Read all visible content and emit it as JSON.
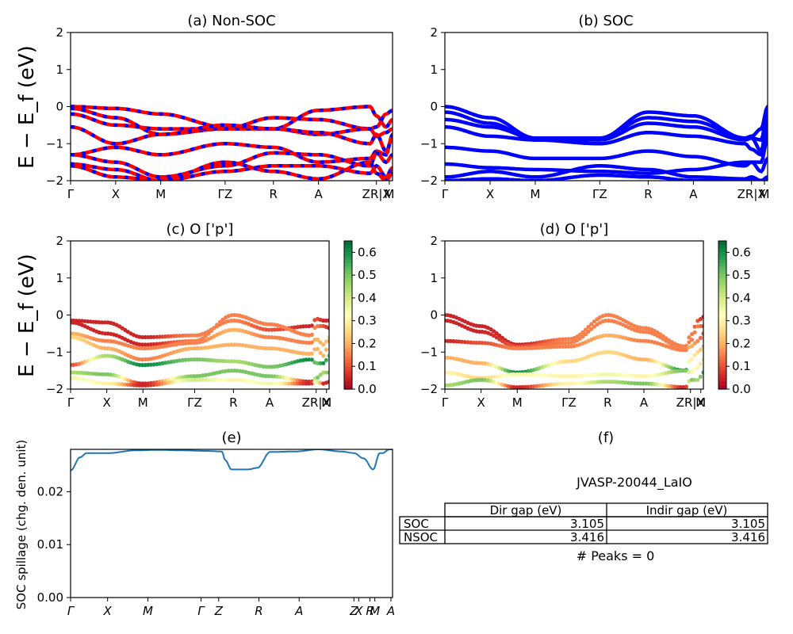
{
  "figure": {
    "ylabel_band": "E − E_f (eV)",
    "ylabel_spill": "SOC spillage (chg. den. unit)"
  },
  "colors": {
    "band_primary": "#ff0000",
    "band_secondary": "#0000ff",
    "spillage_line": "#1f77b4",
    "colormap": [
      "#a50026",
      "#d73027",
      "#f46d43",
      "#fdae61",
      "#fee08b",
      "#ffffbf",
      "#d9ef8b",
      "#a6d96a",
      "#66bd63",
      "#1a9850",
      "#006837"
    ]
  },
  "panels": {
    "a": {
      "title": "(a) Non-SOC"
    },
    "b": {
      "title": "(b) SOC"
    },
    "c": {
      "title": "(c)  O ['p']"
    },
    "d": {
      "title": "(d) O ['p']"
    },
    "e": {
      "title": "(e)"
    },
    "f": {
      "title": "(f)"
    }
  },
  "band_axes": {
    "yticks": [
      "2",
      "1",
      "0",
      "−1",
      "−2"
    ],
    "kpath": [
      "Γ",
      "X",
      "M",
      "ΓZ",
      "R",
      "A",
      "ZR|X",
      "M"
    ]
  },
  "spill_axes": {
    "yticks": [
      "0.02",
      "0.01",
      "0.00"
    ],
    "kpath": [
      "Γ",
      "X",
      "M",
      "Γ",
      "Z",
      "R",
      "A",
      "Z",
      "X",
      "R",
      "M",
      "A"
    ]
  },
  "colorbar": {
    "ticks": [
      "0.6",
      "0.5",
      "0.4",
      "0.3",
      "0.2",
      "0.1",
      "0.0"
    ]
  },
  "info": {
    "jid": "JVASP-20044_LaIO",
    "columns": [
      "",
      "Dir gap (eV)",
      "Indir gap (eV)"
    ],
    "rows": [
      [
        "SOC",
        "3.105",
        "3.105"
      ],
      [
        "NSOC",
        "3.416",
        "3.416"
      ]
    ],
    "peaks": "# Peaks = 0"
  },
  "chart_data": [
    {
      "type": "line",
      "title": "(a) Non-SOC",
      "ylabel": "E − E_f (eV)",
      "ylim": [
        -2,
        2
      ],
      "xticks": [
        "Γ",
        "X",
        "M",
        "ΓZ",
        "R",
        "A",
        "ZR|X",
        "M"
      ],
      "x_norm": [
        0.0,
        0.14,
        0.28,
        0.48,
        0.63,
        0.77,
        0.93,
        0.95,
        0.98,
        1.0
      ],
      "series": [
        {
          "values": [
            0.0,
            -0.05,
            -0.2,
            -0.55,
            -0.6,
            -0.1,
            0.0,
            -0.25,
            -0.55,
            -0.35
          ]
        },
        {
          "values": [
            -0.05,
            -0.3,
            -0.75,
            -0.6,
            -0.3,
            -0.35,
            -0.6,
            -0.55,
            -0.2,
            -0.1
          ]
        },
        {
          "values": [
            -0.2,
            -0.5,
            -0.6,
            -0.6,
            -0.6,
            -0.75,
            -0.6,
            -0.8,
            -0.7,
            -0.6
          ]
        },
        {
          "values": [
            -0.55,
            -1.0,
            -0.75,
            -0.5,
            -0.6,
            -0.7,
            -1.0,
            -0.75,
            -1.2,
            -0.85
          ]
        },
        {
          "values": [
            -1.3,
            -1.1,
            -1.3,
            -1.0,
            -1.1,
            -1.5,
            -1.4,
            -1.2,
            -1.3,
            -0.75
          ]
        },
        {
          "values": [
            -1.3,
            -1.5,
            -1.9,
            -1.6,
            -1.25,
            -1.3,
            -1.6,
            -1.25,
            -1.5,
            -1.3
          ]
        },
        {
          "values": [
            -1.55,
            -1.7,
            -2.0,
            -1.75,
            -1.6,
            -1.6,
            -1.8,
            -1.6,
            -1.9,
            -1.65
          ]
        },
        {
          "values": [
            -1.6,
            -1.9,
            -2.0,
            -1.5,
            -1.75,
            -1.95,
            -1.5,
            -1.8,
            -2.0,
            -1.8
          ]
        }
      ]
    },
    {
      "type": "line",
      "title": "(b) SOC",
      "ylabel": "",
      "ylim": [
        -2,
        2
      ],
      "xticks": [
        "Γ",
        "X",
        "M",
        "ΓZ",
        "R",
        "A",
        "ZR|X",
        "M"
      ],
      "x_norm": [
        0.0,
        0.14,
        0.28,
        0.48,
        0.63,
        0.77,
        0.93,
        0.95,
        0.98,
        1.0
      ],
      "series": [
        {
          "values": [
            0.0,
            -0.3,
            -0.85,
            -0.85,
            -0.15,
            -0.25,
            -0.85,
            -0.8,
            -0.6,
            0.0
          ]
        },
        {
          "values": [
            -0.15,
            -0.45,
            -0.9,
            -0.85,
            -0.3,
            -0.4,
            -0.85,
            -0.85,
            -0.9,
            -0.15
          ]
        },
        {
          "values": [
            -0.35,
            -0.55,
            -0.85,
            -0.9,
            -0.45,
            -0.55,
            -0.9,
            -0.85,
            -1.2,
            -0.35
          ]
        },
        {
          "values": [
            -0.55,
            -0.8,
            -0.9,
            -1.0,
            -0.7,
            -0.8,
            -1.0,
            -1.15,
            -1.3,
            -0.6
          ]
        },
        {
          "values": [
            -1.1,
            -1.2,
            -1.4,
            -1.4,
            -1.2,
            -1.35,
            -1.6,
            -1.5,
            -1.5,
            -0.85
          ]
        },
        {
          "values": [
            -1.55,
            -1.65,
            -1.7,
            -1.75,
            -1.8,
            -1.7,
            -1.5,
            -1.5,
            -1.75,
            -1.4
          ]
        },
        {
          "values": [
            -1.9,
            -1.75,
            -1.9,
            -1.6,
            -1.7,
            -1.9,
            -1.95,
            -1.9,
            -2.0,
            -1.9
          ]
        },
        {
          "values": [
            -2.0,
            -1.95,
            -2.0,
            -1.85,
            -1.9,
            -2.0,
            -2.0,
            -1.95,
            -2.0,
            -2.0
          ]
        }
      ]
    },
    {
      "type": "scatter",
      "title": "(c)  O ['p']",
      "ylabel": "E − E_f (eV)",
      "ylim": [
        -2,
        2
      ],
      "colorbar": [
        0.0,
        0.65
      ],
      "xticks": [
        "Γ",
        "X",
        "M",
        "ΓZ",
        "R",
        "A",
        "ZR|X",
        "M"
      ],
      "x_norm": [
        0.0,
        0.14,
        0.28,
        0.48,
        0.63,
        0.77,
        0.93,
        0.95,
        0.98,
        1.0
      ],
      "series": [
        {
          "values": [
            -0.15,
            -0.2,
            -0.6,
            -0.55,
            -0.15,
            -0.4,
            -0.3,
            -0.1,
            -0.15,
            -0.15
          ],
          "weights": [
            0.05,
            0.05,
            0.05,
            0.15,
            0.15,
            0.1,
            0.05,
            0.1,
            0.05,
            0.05
          ]
        },
        {
          "values": [
            -0.2,
            -0.5,
            -0.8,
            -0.7,
            0.0,
            -0.25,
            -0.55,
            -0.3,
            -0.3,
            -0.35
          ],
          "weights": [
            0.05,
            0.05,
            0.05,
            0.15,
            0.15,
            0.15,
            0.15,
            0.15,
            0.1,
            0.05
          ]
        },
        {
          "values": [
            -0.5,
            -0.7,
            -0.9,
            -0.75,
            -0.4,
            -0.6,
            -0.75,
            -0.65,
            -0.8,
            -0.6
          ],
          "weights": [
            0.2,
            0.15,
            0.15,
            0.15,
            0.2,
            0.15,
            0.15,
            0.2,
            0.2,
            0.25
          ]
        },
        {
          "values": [
            -0.6,
            -0.9,
            -1.2,
            -0.9,
            -0.8,
            -0.9,
            -1.05,
            -0.9,
            -1.1,
            -0.7
          ],
          "weights": [
            0.25,
            0.2,
            0.15,
            0.2,
            0.2,
            0.2,
            0.2,
            0.2,
            0.2,
            0.2
          ]
        },
        {
          "values": [
            -1.35,
            -1.1,
            -1.35,
            -1.2,
            -1.25,
            -1.4,
            -1.2,
            -1.3,
            -1.3,
            -1.1
          ],
          "weights": [
            0.1,
            0.45,
            0.6,
            0.5,
            0.45,
            0.5,
            0.6,
            0.5,
            0.6,
            0.5
          ]
        },
        {
          "values": [
            -1.55,
            -1.6,
            -1.85,
            -1.65,
            -1.5,
            -1.65,
            -1.8,
            -1.7,
            -1.55,
            -1.55
          ],
          "weights": [
            0.45,
            0.5,
            0.05,
            0.5,
            0.5,
            0.5,
            0.05,
            0.5,
            0.45,
            0.5
          ]
        },
        {
          "values": [
            -1.7,
            -1.85,
            -1.9,
            -1.75,
            -1.75,
            -1.85,
            -1.85,
            -1.8,
            -1.85,
            -1.8
          ],
          "weights": [
            0.35,
            0.3,
            0.05,
            0.4,
            0.3,
            0.35,
            0.05,
            0.4,
            0.05,
            0.05
          ]
        }
      ]
    },
    {
      "type": "scatter",
      "title": "(d) O ['p']",
      "ylabel": "",
      "ylim": [
        -2,
        2
      ],
      "colorbar": [
        0.0,
        0.65
      ],
      "xticks": [
        "Γ",
        "X",
        "M",
        "ΓZ",
        "R",
        "A",
        "ZR|X",
        "M"
      ],
      "x_norm": [
        0.0,
        0.14,
        0.28,
        0.48,
        0.63,
        0.77,
        0.93,
        0.95,
        0.98,
        1.0
      ],
      "series": [
        {
          "values": [
            0.0,
            -0.3,
            -0.8,
            -0.65,
            0.0,
            -0.35,
            -0.85,
            -0.55,
            -0.15,
            -0.05
          ],
          "weights": [
            0.05,
            0.05,
            0.05,
            0.15,
            0.15,
            0.15,
            0.15,
            0.15,
            0.1,
            0.05
          ]
        },
        {
          "values": [
            -0.15,
            -0.45,
            -0.85,
            -0.75,
            -0.15,
            -0.45,
            -0.9,
            -0.7,
            -0.3,
            -0.3
          ],
          "weights": [
            0.05,
            0.05,
            0.1,
            0.15,
            0.15,
            0.15,
            0.15,
            0.15,
            0.15,
            0.1
          ]
        },
        {
          "values": [
            -0.7,
            -0.75,
            -0.9,
            -0.85,
            -0.55,
            -0.7,
            -0.95,
            -0.85,
            -0.7,
            -0.5
          ],
          "weights": [
            0.05,
            0.1,
            0.15,
            0.15,
            0.2,
            0.15,
            0.15,
            0.2,
            0.15,
            0.1
          ]
        },
        {
          "values": [
            -1.15,
            -1.3,
            -1.55,
            -1.25,
            -1.0,
            -1.2,
            -1.5,
            -1.2,
            -1.0,
            -0.85
          ],
          "weights": [
            0.2,
            0.2,
            0.6,
            0.25,
            0.25,
            0.2,
            0.6,
            0.3,
            0.25,
            0.2
          ]
        },
        {
          "values": [
            -1.55,
            -1.7,
            -1.6,
            -1.65,
            -1.6,
            -1.65,
            -1.5,
            -1.55,
            -1.4,
            -1.2
          ],
          "weights": [
            0.3,
            0.25,
            0.35,
            0.3,
            0.35,
            0.3,
            0.5,
            0.35,
            0.3,
            0.25
          ]
        },
        {
          "values": [
            -1.9,
            -1.75,
            -1.95,
            -1.85,
            -1.8,
            -1.85,
            -1.95,
            -1.75,
            -1.75,
            -1.55
          ],
          "weights": [
            0.45,
            0.5,
            0.05,
            0.3,
            0.45,
            0.5,
            0.05,
            0.5,
            0.45,
            0.55
          ]
        }
      ]
    },
    {
      "type": "line",
      "title": "(e)",
      "ylabel": "SOC spillage (chg. den. unit)",
      "ylim": [
        0.0,
        0.028
      ],
      "xticks": [
        "Γ",
        "X",
        "M",
        "Γ",
        "Z",
        "R",
        "A",
        "Z",
        "X",
        "R",
        "M",
        "A"
      ],
      "x_norm": [
        0.0,
        0.03,
        0.05,
        0.12,
        0.2,
        0.27,
        0.35,
        0.42,
        0.47,
        0.48,
        0.5,
        0.52,
        0.55,
        0.58,
        0.62,
        0.7,
        0.77,
        0.84,
        0.88,
        0.91,
        0.94,
        0.96,
        0.97,
        0.99,
        1.0
      ],
      "series": [
        {
          "name": "",
          "values": [
            0.024,
            0.0265,
            0.0273,
            0.0273,
            0.0278,
            0.0279,
            0.0278,
            0.0277,
            0.0276,
            0.026,
            0.0242,
            0.0242,
            0.0242,
            0.0245,
            0.0275,
            0.0276,
            0.028,
            0.0276,
            0.0273,
            0.0263,
            0.0242,
            0.0273,
            0.0273,
            0.028,
            0.028
          ]
        }
      ]
    }
  ]
}
